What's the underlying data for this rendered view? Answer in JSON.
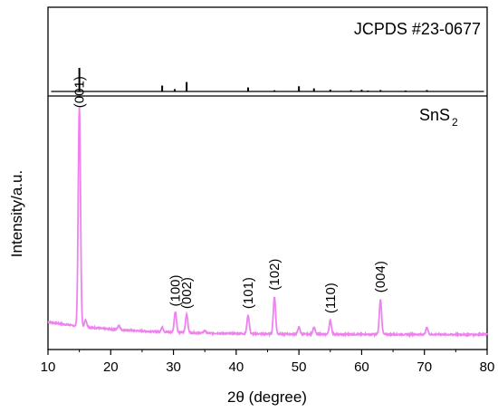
{
  "chart_data": {
    "type": "line",
    "xlabel": "2θ (degree)",
    "ylabel": "Intensity/a.u.",
    "xlim": [
      10,
      80
    ],
    "xticks": [
      10,
      20,
      30,
      40,
      50,
      60,
      70,
      80
    ],
    "panels": [
      {
        "name": "top",
        "label": "JCPDS #23-0677",
        "color": "#000000",
        "kind": "stick",
        "ylim": [
          0,
          100
        ],
        "sticks": [
          {
            "x": 15.0,
            "y": 100
          },
          {
            "x": 28.2,
            "y": 25
          },
          {
            "x": 30.2,
            "y": 10
          },
          {
            "x": 32.1,
            "y": 40
          },
          {
            "x": 41.9,
            "y": 17
          },
          {
            "x": 46.1,
            "y": 5
          },
          {
            "x": 50.0,
            "y": 22
          },
          {
            "x": 52.4,
            "y": 13
          },
          {
            "x": 55.0,
            "y": 8
          },
          {
            "x": 58.3,
            "y": 5
          },
          {
            "x": 60.0,
            "y": 7
          },
          {
            "x": 61.0,
            "y": 4
          },
          {
            "x": 63.0,
            "y": 6
          },
          {
            "x": 67.0,
            "y": 4
          },
          {
            "x": 70.4,
            "y": 6
          }
        ]
      },
      {
        "name": "bottom",
        "label_main": "SnS",
        "label_sub": "2",
        "color": "#ee82ee",
        "kind": "profile",
        "ylim": [
          0,
          100
        ],
        "baseline_start": 5.5,
        "baseline_end": 1.0,
        "peaks": [
          {
            "x": 15.0,
            "y": 95,
            "label": "(001)"
          },
          {
            "x": 16.0,
            "y": 3,
            "label": ""
          },
          {
            "x": 21.3,
            "y": 2,
            "label": ""
          },
          {
            "x": 28.2,
            "y": 2,
            "label": ""
          },
          {
            "x": 30.3,
            "y": 9,
            "label": "(100)"
          },
          {
            "x": 32.1,
            "y": 8,
            "label": "(002)"
          },
          {
            "x": 35.0,
            "y": 1,
            "label": ""
          },
          {
            "x": 41.9,
            "y": 8,
            "label": "(101)"
          },
          {
            "x": 46.1,
            "y": 16,
            "label": "(102)"
          },
          {
            "x": 50.0,
            "y": 3,
            "label": ""
          },
          {
            "x": 52.4,
            "y": 3,
            "label": ""
          },
          {
            "x": 55.0,
            "y": 6,
            "label": "(110)"
          },
          {
            "x": 63.0,
            "y": 15,
            "label": "(004)"
          },
          {
            "x": 70.4,
            "y": 3,
            "label": ""
          }
        ]
      }
    ]
  }
}
